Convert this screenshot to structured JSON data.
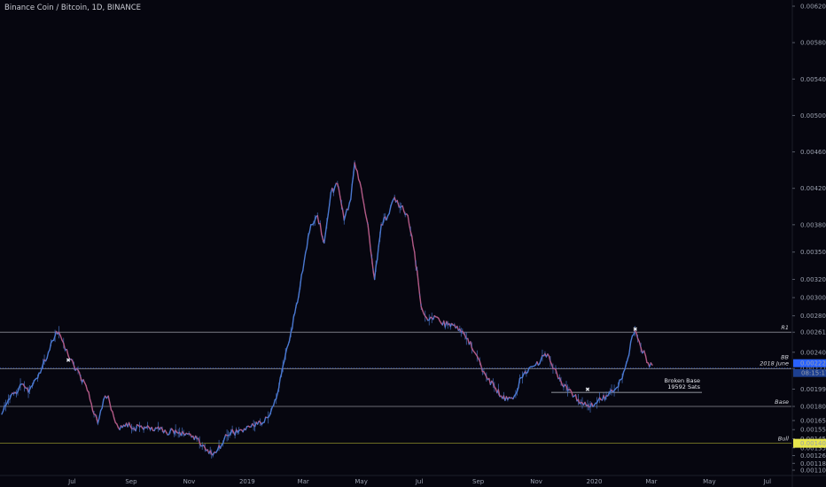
{
  "chart_data": {
    "type": "candlestick",
    "title": "Binance Coin / Bitcoin, 1D, BINANCE",
    "ylim": [
      0.001105,
      0.00624
    ],
    "y_ticks": [
      "0.0062000",
      "0.0058000",
      "0.0054000",
      "0.0050000",
      "0.0046000",
      "0.0042000",
      "0.0038000",
      "0.0035000",
      "0.0032000",
      "0.0030000",
      "0.0028000",
      "0.0024000",
      "0.0019950",
      "0.0016500",
      "0.0015500",
      "0.0014500",
      "0.0013500",
      "0.0012650",
      "0.0011800",
      "0.0011050"
    ],
    "x_ticks": [
      "Jul",
      "Sep",
      "Nov",
      "2019",
      "Mar",
      "May",
      "Jul",
      "Sep",
      "Nov",
      "2020",
      "Mar",
      "May",
      "Jul"
    ],
    "series": [
      {
        "x": "2018-04-18",
        "y": 0.00172
      },
      {
        "x": "2018-04-25",
        "y": 0.00188
      },
      {
        "x": "2018-05-02",
        "y": 0.00196
      },
      {
        "x": "2018-05-09",
        "y": 0.00205
      },
      {
        "x": "2018-05-16",
        "y": 0.00196
      },
      {
        "x": "2018-05-23",
        "y": 0.0021
      },
      {
        "x": "2018-05-30",
        "y": 0.00222
      },
      {
        "x": "2018-06-06",
        "y": 0.0024
      },
      {
        "x": "2018-06-13",
        "y": 0.00258
      },
      {
        "x": "2018-06-17",
        "y": 0.00262
      },
      {
        "x": "2018-06-22",
        "y": 0.0025
      },
      {
        "x": "2018-06-27",
        "y": 0.00236
      },
      {
        "x": "2018-07-03",
        "y": 0.00225
      },
      {
        "x": "2018-07-10",
        "y": 0.00212
      },
      {
        "x": "2018-07-17",
        "y": 0.00198
      },
      {
        "x": "2018-07-24",
        "y": 0.00172
      },
      {
        "x": "2018-07-28",
        "y": 0.00162
      },
      {
        "x": "2018-08-03",
        "y": 0.00188
      },
      {
        "x": "2018-08-08",
        "y": 0.00192
      },
      {
        "x": "2018-08-14",
        "y": 0.00168
      },
      {
        "x": "2018-08-20",
        "y": 0.00155
      },
      {
        "x": "2018-08-27",
        "y": 0.00162
      },
      {
        "x": "2018-09-03",
        "y": 0.00156
      },
      {
        "x": "2018-09-10",
        "y": 0.00158
      },
      {
        "x": "2018-09-17",
        "y": 0.00157
      },
      {
        "x": "2018-09-24",
        "y": 0.00154
      },
      {
        "x": "2018-10-01",
        "y": 0.00155
      },
      {
        "x": "2018-10-08",
        "y": 0.00152
      },
      {
        "x": "2018-10-15",
        "y": 0.00154
      },
      {
        "x": "2018-10-22",
        "y": 0.00152
      },
      {
        "x": "2018-10-29",
        "y": 0.00151
      },
      {
        "x": "2018-11-05",
        "y": 0.00148
      },
      {
        "x": "2018-11-12",
        "y": 0.00141
      },
      {
        "x": "2018-11-19",
        "y": 0.00132
      },
      {
        "x": "2018-11-26",
        "y": 0.00127
      },
      {
        "x": "2018-12-01",
        "y": 0.00133
      },
      {
        "x": "2018-12-08",
        "y": 0.00145
      },
      {
        "x": "2018-12-15",
        "y": 0.00152
      },
      {
        "x": "2018-12-22",
        "y": 0.00152
      },
      {
        "x": "2018-12-29",
        "y": 0.00156
      },
      {
        "x": "2019-01-05",
        "y": 0.00158
      },
      {
        "x": "2019-01-12",
        "y": 0.00161
      },
      {
        "x": "2019-01-19",
        "y": 0.00163
      },
      {
        "x": "2019-01-26",
        "y": 0.00175
      },
      {
        "x": "2019-02-02",
        "y": 0.00195
      },
      {
        "x": "2019-02-09",
        "y": 0.0023
      },
      {
        "x": "2019-02-16",
        "y": 0.00262
      },
      {
        "x": "2019-02-23",
        "y": 0.00295
      },
      {
        "x": "2019-03-02",
        "y": 0.0034
      },
      {
        "x": "2019-03-09",
        "y": 0.0038
      },
      {
        "x": "2019-03-16",
        "y": 0.0039
      },
      {
        "x": "2019-03-23",
        "y": 0.0036
      },
      {
        "x": "2019-03-30",
        "y": 0.00415
      },
      {
        "x": "2019-04-06",
        "y": 0.00425
      },
      {
        "x": "2019-04-13",
        "y": 0.00385
      },
      {
        "x": "2019-04-20",
        "y": 0.00408
      },
      {
        "x": "2019-04-24",
        "y": 0.00448
      },
      {
        "x": "2019-05-01",
        "y": 0.0042
      },
      {
        "x": "2019-05-08",
        "y": 0.0038
      },
      {
        "x": "2019-05-15",
        "y": 0.0032
      },
      {
        "x": "2019-05-22",
        "y": 0.0038
      },
      {
        "x": "2019-05-29",
        "y": 0.0039
      },
      {
        "x": "2019-06-05",
        "y": 0.0041
      },
      {
        "x": "2019-06-12",
        "y": 0.004
      },
      {
        "x": "2019-06-19",
        "y": 0.0039
      },
      {
        "x": "2019-06-26",
        "y": 0.0035
      },
      {
        "x": "2019-07-03",
        "y": 0.0029
      },
      {
        "x": "2019-07-10",
        "y": 0.00275
      },
      {
        "x": "2019-07-17",
        "y": 0.0028
      },
      {
        "x": "2019-07-24",
        "y": 0.00272
      },
      {
        "x": "2019-07-31",
        "y": 0.0027
      },
      {
        "x": "2019-08-07",
        "y": 0.0027
      },
      {
        "x": "2019-08-14",
        "y": 0.00262
      },
      {
        "x": "2019-08-21",
        "y": 0.00255
      },
      {
        "x": "2019-08-28",
        "y": 0.0024
      },
      {
        "x": "2019-09-04",
        "y": 0.00225
      },
      {
        "x": "2019-09-11",
        "y": 0.0021
      },
      {
        "x": "2019-09-18",
        "y": 0.00202
      },
      {
        "x": "2019-09-25",
        "y": 0.00192
      },
      {
        "x": "2019-10-02",
        "y": 0.00188
      },
      {
        "x": "2019-10-09",
        "y": 0.00192
      },
      {
        "x": "2019-10-16",
        "y": 0.00212
      },
      {
        "x": "2019-10-23",
        "y": 0.00218
      },
      {
        "x": "2019-10-30",
        "y": 0.00225
      },
      {
        "x": "2019-11-06",
        "y": 0.00232
      },
      {
        "x": "2019-11-13",
        "y": 0.00238
      },
      {
        "x": "2019-11-20",
        "y": 0.00222
      },
      {
        "x": "2019-11-27",
        "y": 0.00208
      },
      {
        "x": "2019-12-04",
        "y": 0.00198
      },
      {
        "x": "2019-12-11",
        "y": 0.00192
      },
      {
        "x": "2019-12-18",
        "y": 0.00185
      },
      {
        "x": "2019-12-25",
        "y": 0.00182
      },
      {
        "x": "2020-01-01",
        "y": 0.00182
      },
      {
        "x": "2020-01-08",
        "y": 0.00188
      },
      {
        "x": "2020-01-15",
        "y": 0.00192
      },
      {
        "x": "2020-01-22",
        "y": 0.00198
      },
      {
        "x": "2020-01-29",
        "y": 0.0021
      },
      {
        "x": "2020-02-05",
        "y": 0.00232
      },
      {
        "x": "2020-02-10",
        "y": 0.00258
      },
      {
        "x": "2020-02-14",
        "y": 0.00262
      },
      {
        "x": "2020-02-19",
        "y": 0.00245
      },
      {
        "x": "2020-02-24",
        "y": 0.00236
      },
      {
        "x": "2020-02-28",
        "y": 0.00224
      },
      {
        "x": "2020-03-02",
        "y": 0.00226
      }
    ],
    "levels": [
      {
        "label": "R1",
        "value": 0.0026198,
        "value_label": "0.0026198"
      },
      {
        "label": "BB",
        "label2": "2018 June",
        "value": 0.0022201,
        "value_label": "0.0022201"
      },
      {
        "label": "Base",
        "value": 0.001805,
        "value_label": "0.0018050"
      },
      {
        "label": "Bull",
        "value": 0.0014002,
        "value_label": "0.0014002"
      }
    ],
    "current_price": {
      "value": 0.002226,
      "label": "0.0022260",
      "timer": "08:15:17"
    },
    "annotations": [
      {
        "text": "Broken Base",
        "text2": "19592 Sats",
        "value": 0.0019592
      }
    ],
    "marks": [
      {
        "x": "2018-06-27",
        "y": 0.00232,
        "glyph": "✖"
      },
      {
        "x": "2019-12-25",
        "y": 0.002,
        "glyph": "✖"
      },
      {
        "x": "2020-02-13",
        "y": 0.00266,
        "glyph": "✖"
      }
    ],
    "colors": {
      "background": "#06060f",
      "line": "#4a78d0",
      "line_down": "#b25a86",
      "level": "#8b8d96",
      "bull_level": "#8e8e2c",
      "current_price": "#2962ff",
      "axis_text": "#9aa0ae"
    }
  }
}
